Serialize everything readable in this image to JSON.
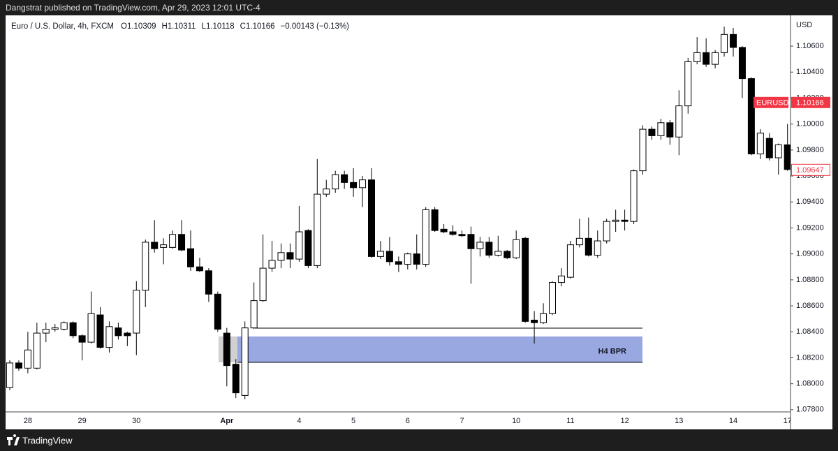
{
  "header": "Dangstrat published on TradingView.com, Apr 29, 2023 12:01 UTC-4",
  "footer": "TradingView",
  "chart_data": {
    "type": "candlestick",
    "title": "Euro / U.S. Dollar, 4h, FXCM",
    "ohlc_legend": [
      "O1.10309",
      "H1.10311",
      "L1.10118",
      "C1.10166",
      "−0.00143 (−0.13%)"
    ],
    "axis_unit": "USD",
    "up_color": "#ffffff",
    "down_color": "#000000",
    "border_color": "#000000",
    "categories": [
      null,
      null,
      "28",
      null,
      null,
      null,
      null,
      null,
      "29",
      null,
      null,
      null,
      null,
      null,
      "30",
      null,
      null,
      null,
      null,
      null,
      null,
      null,
      null,
      null,
      "Apr",
      null,
      null,
      null,
      null,
      null,
      null,
      null,
      "4",
      null,
      null,
      null,
      null,
      null,
      "5",
      null,
      null,
      null,
      null,
      null,
      "6",
      null,
      null,
      null,
      null,
      null,
      "7",
      null,
      null,
      null,
      null,
      null,
      "10",
      null,
      null,
      null,
      null,
      null,
      "11",
      null,
      null,
      null,
      null,
      null,
      "12",
      null,
      null,
      null,
      null,
      null,
      "13",
      null,
      null,
      null,
      null,
      null,
      "14",
      null,
      null,
      null,
      null,
      null,
      "17"
    ],
    "open": [
      1.0797,
      1.0816,
      1.0812,
      1.0812,
      1.0839,
      1.0842,
      1.0842,
      1.0847,
      1.0837,
      1.0832,
      1.0853,
      1.0828,
      1.0843,
      1.0839,
      1.0839,
      1.0872,
      1.0909,
      1.0905,
      1.0905,
      1.0915,
      1.0904,
      1.089,
      1.0887,
      1.0869,
      1.0839,
      1.0815,
      1.0791,
      1.0843,
      1.0864,
      1.0889,
      1.0895,
      1.0901,
      1.0896,
      1.0918,
      1.0891,
      1.0946,
      1.095,
      1.0961,
      1.0955,
      1.0951,
      1.0957,
      1.0898,
      1.0902,
      1.0894,
      1.0892,
      1.09,
      1.0892,
      1.0934,
      1.0919,
      1.0917,
      1.0915,
      1.0915,
      1.0904,
      1.0909,
      1.0899,
      1.0902,
      1.0897,
      1.0912,
      1.0849,
      1.0847,
      1.0854,
      1.0878,
      1.0882,
      1.0907,
      1.0912,
      1.0899,
      1.091,
      1.0925,
      1.0926,
      1.0925,
      1.0964,
      1.0996,
      1.0991,
      1.1001,
      1.099,
      1.1014,
      1.1048,
      1.1055,
      1.1046,
      1.1055,
      1.1069,
      1.1059,
      1.1035,
      1.0977,
      1.0989,
      1.0974,
      1.0984
    ],
    "high": [
      1.0818,
      1.0818,
      1.084,
      1.0847,
      1.0847,
      1.0846,
      1.0848,
      1.0848,
      1.0838,
      1.0871,
      1.0859,
      1.0848,
      1.0847,
      1.084,
      1.0879,
      1.0911,
      1.0926,
      1.0912,
      1.0918,
      1.0926,
      1.0918,
      1.0897,
      1.0889,
      1.0871,
      1.0843,
      1.0819,
      1.0848,
      1.0878,
      1.0915,
      1.091,
      1.0908,
      1.0908,
      1.0937,
      1.0919,
      1.0973,
      1.0957,
      1.0964,
      1.0964,
      1.0966,
      1.096,
      1.0966,
      1.091,
      1.0913,
      1.0898,
      1.0901,
      1.0915,
      1.0936,
      1.0936,
      1.0923,
      1.0922,
      1.0918,
      1.0921,
      1.0913,
      1.0913,
      1.0914,
      1.0903,
      1.0918,
      1.0913,
      1.0856,
      1.0862,
      1.0879,
      1.0889,
      1.091,
      1.0927,
      1.0928,
      1.0918,
      1.0927,
      1.0934,
      1.0934,
      1.0965,
      1.0999,
      1.0998,
      1.1004,
      1.1003,
      1.1026,
      1.1051,
      1.1067,
      1.1066,
      1.1057,
      1.1075,
      1.1074,
      1.106,
      1.1036,
      1.0996,
      1.0993,
      1.0985,
      1.1
    ],
    "low": [
      1.0795,
      1.081,
      1.0808,
      1.0811,
      1.0832,
      1.084,
      1.0841,
      1.0835,
      1.0818,
      1.0831,
      1.0827,
      1.0824,
      1.0834,
      1.0829,
      1.0822,
      1.0859,
      1.0901,
      1.0892,
      1.0904,
      1.0902,
      1.0887,
      1.0886,
      1.0863,
      1.084,
      1.0798,
      1.0789,
      1.0788,
      1.0842,
      1.0863,
      1.0886,
      1.0889,
      1.0889,
      1.0894,
      1.0889,
      1.0889,
      1.0944,
      1.0947,
      1.095,
      1.0944,
      1.0936,
      1.0897,
      1.0896,
      1.0891,
      1.0886,
      1.0888,
      1.0888,
      1.089,
      1.0917,
      1.0916,
      1.0914,
      1.0913,
      1.0877,
      1.0898,
      1.0897,
      1.0898,
      1.0896,
      1.0896,
      1.0847,
      1.0831,
      1.0846,
      1.0853,
      1.0875,
      1.0881,
      1.0905,
      1.0898,
      1.0897,
      1.0908,
      1.0917,
      1.0918,
      1.0923,
      1.0961,
      1.0988,
      1.0988,
      1.0984,
      1.0976,
      1.1008,
      1.1046,
      1.1044,
      1.1043,
      1.1052,
      1.1052,
      1.102,
      1.0976,
      1.0973,
      1.0972,
      1.0961,
      1.0964
    ],
    "close": [
      1.0816,
      1.0812,
      1.0826,
      1.0839,
      1.0842,
      1.0843,
      1.0847,
      1.0837,
      1.0832,
      1.0854,
      1.0828,
      1.0844,
      1.0837,
      1.0837,
      1.0872,
      1.0909,
      1.0904,
      1.0907,
      1.0915,
      1.0903,
      1.089,
      1.0887,
      1.0869,
      1.0842,
      1.0814,
      1.0793,
      1.0843,
      1.0864,
      1.0889,
      1.0895,
      1.0901,
      1.0896,
      1.0917,
      1.0891,
      1.0946,
      1.095,
      1.0961,
      1.0955,
      1.0951,
      1.0957,
      1.0898,
      1.0902,
      1.0894,
      1.0892,
      1.09,
      1.0892,
      1.0934,
      1.0918,
      1.0917,
      1.0915,
      1.0914,
      1.0904,
      1.0909,
      1.0899,
      1.0902,
      1.0897,
      1.0911,
      1.0848,
      1.0847,
      1.0854,
      1.0878,
      1.0883,
      1.0907,
      1.0912,
      1.0899,
      1.091,
      1.0925,
      1.0926,
      1.0925,
      1.0964,
      1.0996,
      1.0991,
      1.1001,
      1.099,
      1.1014,
      1.1048,
      1.1055,
      1.1046,
      1.1055,
      1.1069,
      1.1059,
      1.1035,
      1.0977,
      1.0993,
      1.0974,
      1.0984,
      1.0965
    ],
    "ylim": [
      1.07783,
      1.10837
    ],
    "yticks": [
      {
        "value": 1.106,
        "label": "1.10600"
      },
      {
        "value": 1.104,
        "label": "1.10400"
      },
      {
        "value": 1.102,
        "label": "1.10200"
      },
      {
        "value": 1.1,
        "label": "1.10000"
      },
      {
        "value": 1.098,
        "label": "1.09800"
      },
      {
        "value": 1.096,
        "label": "1.09600"
      },
      {
        "value": 1.094,
        "label": "1.09400"
      },
      {
        "value": 1.092,
        "label": "1.09200"
      },
      {
        "value": 1.09,
        "label": "1.09000"
      },
      {
        "value": 1.088,
        "label": "1.08800"
      },
      {
        "value": 1.086,
        "label": "1.08600"
      },
      {
        "value": 1.084,
        "label": "1.08400"
      },
      {
        "value": 1.082,
        "label": "1.08200"
      },
      {
        "value": 1.08,
        "label": "1.08000"
      },
      {
        "value": 1.078,
        "label": "1.07800"
      }
    ],
    "grid": false,
    "levels": [
      1.08428
    ],
    "zones": [
      {
        "label": "H4 BPR",
        "top": 1.08364,
        "bottom": 1.08165,
        "color": "#99a8e0"
      }
    ],
    "price_labels": [
      {
        "name": "EURUSD",
        "value": 1.10166,
        "color": "#f23645",
        "filled": true
      },
      {
        "value": 1.09647,
        "color": "#f23645",
        "filled": false
      }
    ]
  }
}
